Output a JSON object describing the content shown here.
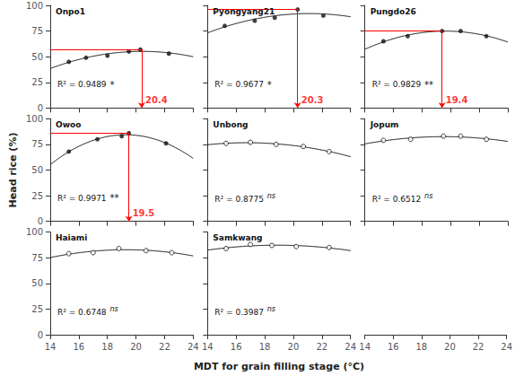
{
  "chart_data": [
    {
      "type": "scatter",
      "title": "Onpo1",
      "x": [
        15.3,
        16.5,
        18.0,
        19.5,
        20.3,
        22.3
      ],
      "values": [
        45,
        49,
        51,
        55,
        57,
        53
      ],
      "marker": "filled",
      "color": "#111111",
      "fit": [
        -0.40547,
        16.5589,
        -113.894
      ],
      "annotations": [
        "R² = 0.9489",
        "*"
      ],
      "peak": {
        "x": 20.4,
        "y": 57,
        "label": "20.4",
        "color": "red"
      },
      "xlim": [
        14,
        24
      ],
      "xticks": [
        14,
        16,
        18,
        20,
        22,
        24
      ],
      "ylim": [
        0,
        100
      ],
      "yticks": [
        0,
        25,
        50,
        75,
        100
      ],
      "grid": false,
      "tick_labels": "y"
    },
    {
      "type": "scatter",
      "title": "Pyongyang21",
      "x": [
        15.2,
        17.3,
        18.7,
        20.3,
        22.1
      ],
      "values": [
        80,
        85,
        88,
        96,
        90
      ],
      "marker": "filled",
      "color": "#111111",
      "fit": [
        -0.371482,
        15.68618,
        -73.5589
      ],
      "annotations": [
        "R² = 0.9677",
        "*"
      ],
      "peak": {
        "x": 20.3,
        "y": 96,
        "label": "20.3",
        "color": "red"
      },
      "xlim": [
        14,
        24
      ],
      "xticks": [
        14,
        16,
        18,
        20,
        22,
        24
      ],
      "ylim": [
        0,
        100
      ],
      "yticks": [
        0,
        25,
        50,
        75,
        100
      ],
      "grid": false,
      "tick_labels": false
    },
    {
      "type": "scatter",
      "title": "Pungdo26",
      "x": [
        15.3,
        17.0,
        19.4,
        20.7,
        22.5
      ],
      "values": [
        65,
        70,
        75,
        75,
        70
      ],
      "marker": "filled",
      "color": "#111111",
      "fit": [
        -0.558695,
        21.94035,
        -140.4751
      ],
      "annotations": [
        "R² = 0.9829",
        "**"
      ],
      "peak": {
        "x": 19.4,
        "y": 75,
        "label": "19.4",
        "color": "red"
      },
      "xlim": [
        14,
        24
      ],
      "xticks": [
        14,
        16,
        18,
        20,
        22,
        24
      ],
      "ylim": [
        0,
        100
      ],
      "yticks": [
        0,
        25,
        50,
        75,
        100
      ],
      "grid": false,
      "tick_labels": false
    },
    {
      "type": "scatter",
      "title": "Owoo",
      "x": [
        15.3,
        17.3,
        19.0,
        19.5,
        22.1
      ],
      "values": [
        68,
        80,
        83,
        86,
        76
      ],
      "marker": "filled",
      "color": "#111111",
      "fit": [
        -1.040576,
        40.15036,
        -302.8874
      ],
      "annotations": [
        "R² = 0.9971",
        "**"
      ],
      "peak": {
        "x": 19.5,
        "y": 86,
        "label": "19.5",
        "color": "red"
      },
      "ylabel": "Head rice (%)",
      "xlim": [
        14,
        24
      ],
      "xticks": [
        14,
        16,
        18,
        20,
        22,
        24
      ],
      "ylim": [
        0,
        100
      ],
      "yticks": [
        0,
        25,
        50,
        75,
        100
      ],
      "grid": false,
      "tick_labels": "y"
    },
    {
      "type": "scatter",
      "title": "Unbong",
      "x": [
        15.3,
        17.0,
        18.8,
        20.7,
        22.5
      ],
      "values": [
        76,
        77,
        75,
        73,
        68
      ],
      "marker": "open",
      "color": "#111111",
      "fit": [
        -0.258529,
        8.6627,
        4.0745
      ],
      "annotations": [
        "R² = 0.8775",
        "ns"
      ],
      "xlim": [
        14,
        24
      ],
      "xticks": [
        14,
        16,
        18,
        20,
        22,
        24
      ],
      "ylim": [
        0,
        100
      ],
      "yticks": [
        0,
        25,
        50,
        75,
        100
      ],
      "grid": false,
      "tick_labels": false
    },
    {
      "type": "scatter",
      "title": "Jopum",
      "x": [
        15.3,
        17.2,
        19.5,
        20.7,
        22.5
      ],
      "values": [
        79,
        80,
        83,
        83,
        80
      ],
      "marker": "open",
      "color": "#111111",
      "fit": [
        -0.231939,
        9.05545,
        -5.834
      ],
      "annotations": [
        "R² = 0.6512",
        "ns"
      ],
      "xlim": [
        14,
        24
      ],
      "xticks": [
        14,
        16,
        18,
        20,
        22,
        24
      ],
      "ylim": [
        0,
        100
      ],
      "yticks": [
        0,
        25,
        50,
        75,
        100
      ],
      "grid": false,
      "tick_labels": false
    },
    {
      "type": "scatter",
      "title": "Haiami",
      "x": [
        15.3,
        17.0,
        18.8,
        20.7,
        22.5
      ],
      "values": [
        79,
        80,
        84,
        82,
        80
      ],
      "marker": "open",
      "color": "#111111",
      "fit": [
        -0.271753,
        10.48821,
        -18.364
      ],
      "annotations": [
        "R² = 0.6748",
        "ns"
      ],
      "xlim": [
        14,
        24
      ],
      "xticks": [
        14,
        16,
        18,
        20,
        22,
        24
      ],
      "ylim": [
        0,
        100
      ],
      "yticks": [
        0,
        25,
        50,
        75,
        100
      ],
      "grid": false
    },
    {
      "type": "scatter",
      "title": "Samkwang",
      "x": [
        15.3,
        17.0,
        18.5,
        20.2,
        22.5
      ],
      "values": [
        84,
        88,
        87,
        86,
        85
      ],
      "marker": "open",
      "color": "#111111",
      "fit": [
        -0.203271,
        7.674505,
        14.83619
      ],
      "annotations": [
        "R² = 0.3987",
        "ns"
      ],
      "xlabel": "MDT for grain filling stage (°C)",
      "xlim": [
        14,
        24
      ],
      "xticks": [
        14,
        16,
        18,
        20,
        22,
        24
      ],
      "ylim": [
        0,
        100
      ],
      "yticks": [
        0,
        25,
        50,
        75,
        100
      ],
      "grid": false,
      "tick_labels": "x"
    },
    {
      "type": "scatter",
      "xlim": [
        14,
        24
      ],
      "xticks": [
        14,
        16,
        18,
        20,
        22,
        24
      ],
      "grid": false,
      "tick_labels": "x"
    }
  ]
}
